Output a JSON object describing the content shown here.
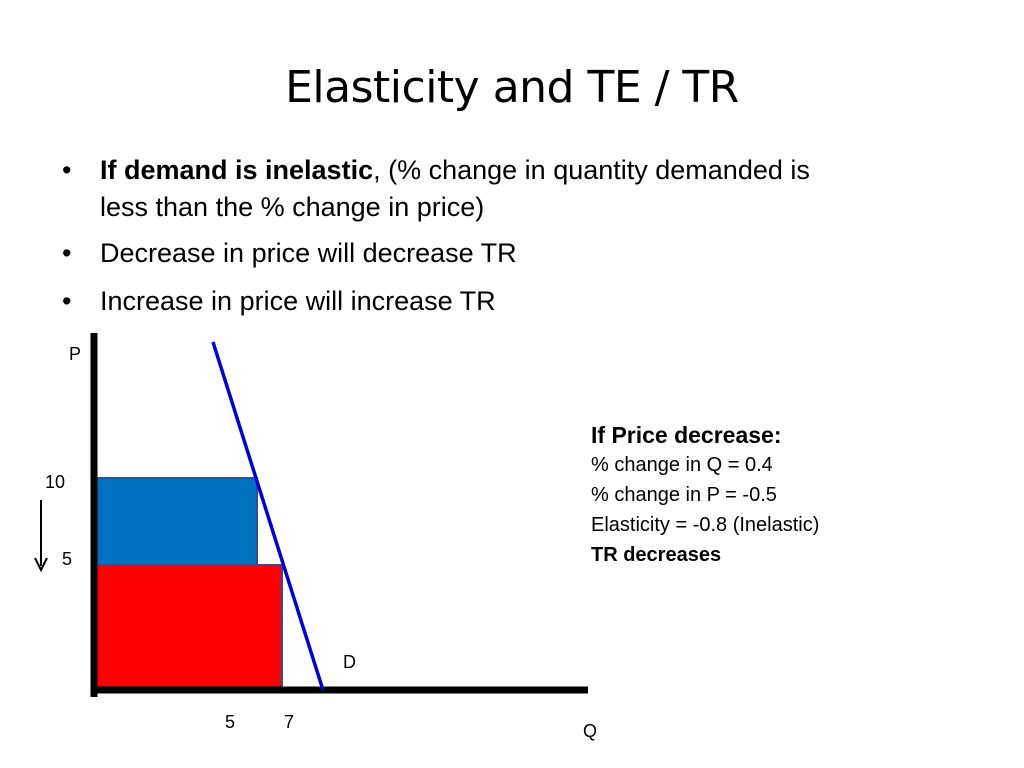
{
  "slide": {
    "title": "Elasticity and TE / TR",
    "bullets": [
      {
        "bold": "If demand is inelastic",
        "text": ", (% change in quantity demanded is less than the % change in price)"
      },
      {
        "bold": "",
        "text": "Decrease in price will decrease TR"
      },
      {
        "bold": "",
        "text": "Increase in price will increase TR"
      }
    ],
    "bullet_glyph": "•"
  },
  "diagram": {
    "y_axis_label": "P",
    "x_axis_label": "Q",
    "demand_label": "D",
    "price_ticks": [
      "10",
      "5"
    ],
    "quantity_ticks": [
      "5",
      "7"
    ],
    "colors": {
      "axis": "#000000",
      "demand_line": "#0000dd",
      "old_revenue": "#0070c0",
      "new_revenue": "#ff0000",
      "rect_border": "#3a4a8a"
    }
  },
  "info": {
    "heading": "If Price decrease:",
    "lines": [
      "% change in Q = 0.4",
      "% change in P = -0.5",
      "Elasticity = -0.8 (Inelastic)"
    ],
    "conclusion": "TR decreases"
  }
}
